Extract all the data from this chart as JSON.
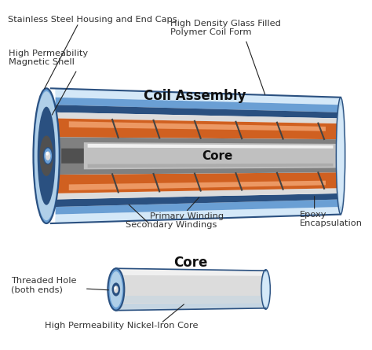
{
  "bg_color": "#ffffff",
  "title_coil": "Coil Assembly",
  "title_core": "Core",
  "labels": {
    "stainless_steel": "Stainless Steel Housing and End Caps",
    "high_perm_mag": "High Permeability\nMagnetic Shell",
    "high_density": "High Density Glass Filled\nPolymer Coil Form",
    "primary_winding": "Primary Winding",
    "secondary_windings": "Secondary Windings",
    "epoxy": "Epoxy\nEncapsulation",
    "core_label": "Core",
    "threaded_hole": "Threaded Hole\n(both ends)",
    "nickel_iron": "High Permeability Nickel-Iron Core"
  },
  "colors": {
    "blue_outer": "#4a7ab5",
    "blue_mid": "#6a9fd4",
    "blue_light": "#b0cfe8",
    "blue_very_light": "#d4e8f8",
    "blue_dark": "#2a5080",
    "blue_end": "#3a6090",
    "silver_dark": "#909090",
    "silver_mid": "#c0c0c0",
    "silver_light": "#dcdcdc",
    "silver_very_light": "#f0f0f0",
    "orange_dark": "#b05010",
    "orange": "#d06020",
    "orange_light": "#e88040",
    "orange_highlight": "#f8b080",
    "gray_dark": "#505050",
    "gray_mid": "#808080",
    "gray_light": "#b0b0b0",
    "white": "#ffffff",
    "black": "#000000",
    "text_color": "#333333",
    "line_color": "#222222"
  }
}
